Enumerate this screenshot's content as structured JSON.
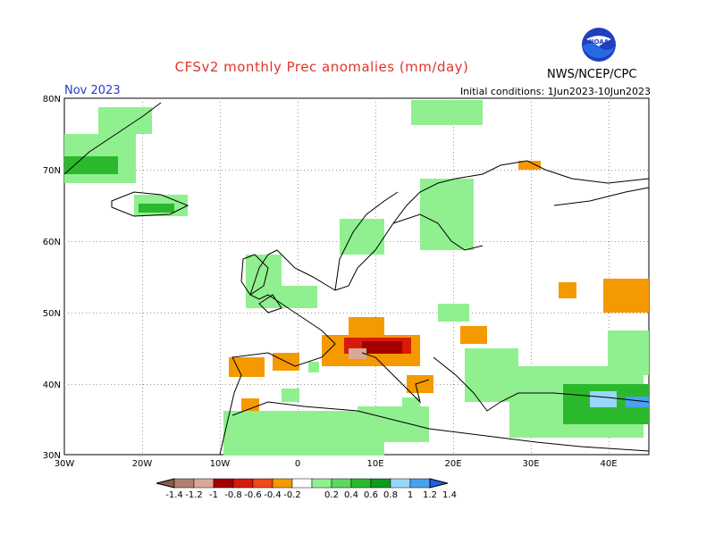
{
  "header": {
    "title": "CFSv2 monthly Prec anomalies (mm/day)",
    "month": "Nov 2023",
    "initial_conditions": "Initial conditions: 1Jun2023-10Jun2023",
    "agency": "NWS/NCEP/CPC",
    "logo_text": "NOAA"
  },
  "axes": {
    "lat_labels": [
      "80N",
      "70N",
      "60N",
      "50N",
      "40N",
      "30N"
    ],
    "lon_labels": [
      "30W",
      "20W",
      "10W",
      "0",
      "10E",
      "20E",
      "30E",
      "40E"
    ]
  },
  "colorbar": {
    "labels": [
      "-1.4",
      "-1.2",
      "-1",
      "-0.8",
      "-0.6",
      "-0.4",
      "-0.2",
      "0.2",
      "0.4",
      "0.6",
      "0.8",
      "1",
      "1.2",
      "1.4"
    ],
    "colors": [
      "#8a5a4a",
      "#b0806e",
      "#d8a898",
      "#a50000",
      "#d81a0a",
      "#f04a18",
      "#f49a00",
      "#ffffff",
      "#90f090",
      "#5cd85c",
      "#2cb82c",
      "#0e9a1a",
      "#9ad6fa",
      "#4aa0f0",
      "#2060e0"
    ]
  },
  "colors": {
    "title": "#e0352b",
    "month": "#2a38c8",
    "gridline": "#999999"
  }
}
